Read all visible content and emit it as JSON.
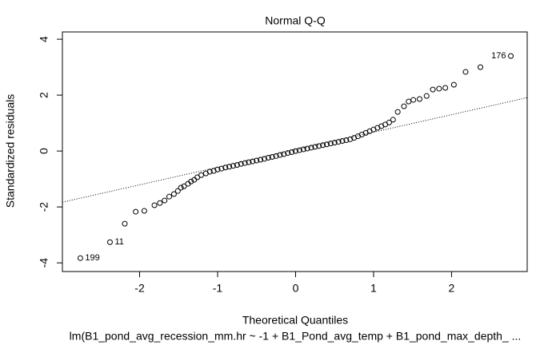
{
  "chart_data": {
    "type": "scatter",
    "title": "Normal Q-Q",
    "x_label": "Theoretical Quantiles",
    "y_label": "Standardized residuals",
    "subtitle": "lm(B1_pond_avg_recession_mm.hr ~ -1 + B1_Pond_avg_temp + B1_pond_max_depth_ ...",
    "color": "#000000",
    "x": [
      -2.76,
      -2.38,
      -2.19,
      -2.05,
      -1.94,
      -1.81,
      -1.74,
      -1.68,
      -1.62,
      -1.56,
      -1.51,
      -1.47,
      -1.43,
      -1.38,
      -1.34,
      -1.3,
      -1.26,
      -1.21,
      -1.15,
      -1.1,
      -1.05,
      -1.0,
      -0.95,
      -0.9,
      -0.85,
      -0.8,
      -0.75,
      -0.7,
      -0.65,
      -0.6,
      -0.55,
      -0.5,
      -0.45,
      -0.4,
      -0.35,
      -0.3,
      -0.25,
      -0.2,
      -0.15,
      -0.1,
      -0.05,
      0,
      0.05,
      0.1,
      0.15,
      0.2,
      0.25,
      0.3,
      0.35,
      0.4,
      0.45,
      0.5,
      0.55,
      0.6,
      0.65,
      0.7,
      0.75,
      0.8,
      0.85,
      0.9,
      0.95,
      1.0,
      1.05,
      1.1,
      1.15,
      1.2,
      1.25,
      1.31,
      1.39,
      1.45,
      1.51,
      1.59,
      1.68,
      1.76,
      1.84,
      1.92,
      2.03,
      2.18,
      2.37,
      2.76
    ],
    "values": [
      -3.83,
      -3.26,
      -2.6,
      -2.17,
      -2.14,
      -1.94,
      -1.86,
      -1.77,
      -1.63,
      -1.54,
      -1.43,
      -1.31,
      -1.26,
      -1.17,
      -1.09,
      -1.03,
      -0.94,
      -0.86,
      -0.8,
      -0.74,
      -0.71,
      -0.66,
      -0.63,
      -0.59,
      -0.56,
      -0.53,
      -0.5,
      -0.46,
      -0.43,
      -0.4,
      -0.37,
      -0.34,
      -0.31,
      -0.28,
      -0.24,
      -0.21,
      -0.18,
      -0.14,
      -0.11,
      -0.07,
      -0.04,
      0,
      0.03,
      0.06,
      0.09,
      0.12,
      0.15,
      0.18,
      0.21,
      0.24,
      0.27,
      0.3,
      0.33,
      0.36,
      0.39,
      0.42,
      0.47,
      0.53,
      0.59,
      0.65,
      0.71,
      0.77,
      0.83,
      0.89,
      0.95,
      1.02,
      1.12,
      1.4,
      1.6,
      1.77,
      1.83,
      1.86,
      1.97,
      2.2,
      2.23,
      2.26,
      2.37,
      2.83,
      3.0,
      3.4
    ],
    "point_labels": [
      "199",
      "11",
      null,
      null,
      null,
      null,
      null,
      null,
      null,
      null,
      null,
      null,
      null,
      null,
      null,
      null,
      null,
      null,
      null,
      null,
      null,
      null,
      null,
      null,
      null,
      null,
      null,
      null,
      null,
      null,
      null,
      null,
      null,
      null,
      null,
      null,
      null,
      null,
      null,
      null,
      null,
      null,
      null,
      null,
      null,
      null,
      null,
      null,
      null,
      null,
      null,
      null,
      null,
      null,
      null,
      null,
      null,
      null,
      null,
      null,
      null,
      null,
      null,
      null,
      null,
      null,
      null,
      null,
      null,
      null,
      null,
      null,
      null,
      null,
      null,
      null,
      null,
      null,
      null,
      "176"
    ],
    "reference_line": {
      "x": [
        -2.99,
        2.97
      ],
      "y": [
        -1.83,
        1.91
      ]
    },
    "xlim": [
      -2.99,
      2.97
    ],
    "ylim": [
      -4.31,
      4.26
    ],
    "xticks": [
      -2,
      -1,
      0,
      1,
      2
    ],
    "yticks": [
      -4,
      -2,
      0,
      2,
      4
    ]
  }
}
